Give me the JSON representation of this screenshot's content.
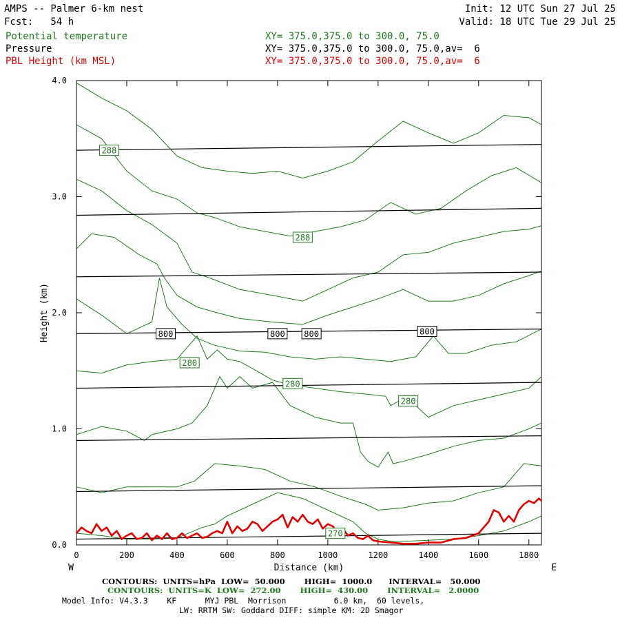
{
  "header": {
    "title": "AMPS -- Palmer 6-km nest",
    "fcst": "Fcst:   54 h",
    "init": "Init: 12 UTC Sun 27 Jul 25",
    "valid": "Valid: 18 UTC Tue 29 Jul 25"
  },
  "legend": [
    {
      "name": "Potential temperature",
      "xy": "XY= 375.0,375.0 to 300.0, 75.0",
      "color": "#1f7a1f"
    },
    {
      "name": "Pressure",
      "xy": "XY= 375.0,375.0 to 300.0, 75.0,av=  6",
      "color": "#000000"
    },
    {
      "name": "PBL Height (km MSL)",
      "xy": "XY= 375.0,375.0 to 300.0, 75.0,av=  6",
      "color": "#e00000"
    }
  ],
  "footer": {
    "pressure_contours": "CONTOURS:  UNITS=hPa  LOW=  50.000       HIGH=  1000.0      INTERVAL=   50.000",
    "theta_contours": "CONTOURS:  UNITS=K  LOW=  272.00       HIGH=  430.00       INTERVAL=   2.0000",
    "model_info": "Model Info: V4.3.3    KF      MYJ PBL  Morrison          6.0 km,  60 levels,",
    "physics": "LW: RRTM SW: Goddard DIFF: simple KM: 2D Smagor"
  },
  "chart_data": {
    "type": "line",
    "xlabel": "Distance (km)",
    "ylabel": "Height (km)",
    "xlim": [
      0,
      1850
    ],
    "ylim": [
      0,
      4.0
    ],
    "x_ticks": [
      "0",
      "200",
      "400",
      "600",
      "800",
      "1000",
      "1200",
      "1400",
      "1600",
      "1800"
    ],
    "y_ticks": [
      "0.0",
      "1.0",
      "2.0",
      "3.0",
      "4.0"
    ],
    "x_tick_values": [
      0,
      200,
      400,
      600,
      800,
      1000,
      1200,
      1400,
      1600,
      1800
    ],
    "y_tick_values": [
      0,
      1,
      2,
      3,
      4
    ],
    "left_end_label": "W",
    "right_end_label": "E",
    "pressure_lines": [
      {
        "x": [
          0,
          1850
        ],
        "y": [
          0.05,
          0.1
        ]
      },
      {
        "x": [
          0,
          1850
        ],
        "y": [
          0.46,
          0.51
        ]
      },
      {
        "x": [
          0,
          1850
        ],
        "y": [
          0.9,
          0.94
        ]
      },
      {
        "x": [
          0,
          1850
        ],
        "y": [
          1.35,
          1.4
        ]
      },
      {
        "x": [
          0,
          1850
        ],
        "y": [
          1.82,
          1.86
        ]
      },
      {
        "x": [
          0,
          1850
        ],
        "y": [
          2.31,
          2.35
        ]
      },
      {
        "x": [
          0,
          1850
        ],
        "y": [
          2.84,
          2.9
        ]
      },
      {
        "x": [
          0,
          1850
        ],
        "y": [
          3.4,
          3.45
        ]
      }
    ],
    "theta_lines": [
      {
        "x": [
          0,
          100,
          200,
          300,
          400,
          500,
          600,
          700,
          800,
          900,
          1000,
          1100,
          1200,
          1300,
          1400,
          1500,
          1600,
          1700,
          1800,
          1850
        ],
        "y": [
          3.98,
          3.85,
          3.74,
          3.58,
          3.35,
          3.25,
          3.22,
          3.2,
          3.22,
          3.16,
          3.22,
          3.3,
          3.48,
          3.65,
          3.55,
          3.46,
          3.55,
          3.7,
          3.68,
          3.62
        ]
      },
      {
        "x": [
          0,
          100,
          200,
          300,
          400,
          480,
          550,
          650,
          750,
          850,
          950,
          1050,
          1150,
          1250,
          1350,
          1450,
          1550,
          1650,
          1750,
          1850
        ],
        "y": [
          3.62,
          3.5,
          3.22,
          3.05,
          2.98,
          2.86,
          2.82,
          2.74,
          2.7,
          2.66,
          2.7,
          2.74,
          2.8,
          2.95,
          2.85,
          2.9,
          3.05,
          3.18,
          3.25,
          3.12
        ]
      },
      {
        "x": [
          0,
          100,
          200,
          300,
          400,
          460,
          530,
          650,
          780,
          900,
          1000,
          1100,
          1200,
          1300,
          1400,
          1500,
          1600,
          1700,
          1800,
          1850
        ],
        "y": [
          3.15,
          3.05,
          2.88,
          2.76,
          2.6,
          2.35,
          2.3,
          2.2,
          2.15,
          2.1,
          2.2,
          2.3,
          2.35,
          2.5,
          2.52,
          2.6,
          2.65,
          2.7,
          2.72,
          2.75
        ]
      },
      {
        "x": [
          0,
          60,
          150,
          250,
          320,
          350,
          400,
          480,
          560,
          650,
          780,
          900,
          1000,
          1100,
          1200,
          1300,
          1400,
          1500,
          1600,
          1700,
          1800,
          1850
        ],
        "y": [
          2.55,
          2.68,
          2.65,
          2.5,
          2.42,
          2.3,
          2.15,
          2.05,
          2.0,
          1.95,
          1.92,
          1.9,
          1.98,
          2.05,
          2.12,
          2.2,
          2.1,
          2.1,
          2.15,
          2.25,
          2.32,
          2.36
        ]
      },
      {
        "x": [
          0,
          100,
          200,
          300,
          330,
          360,
          420,
          480,
          550,
          650,
          750,
          850,
          950,
          1050,
          1150,
          1250,
          1350,
          1420,
          1480,
          1550,
          1650,
          1750,
          1850
        ],
        "y": [
          2.12,
          1.98,
          1.82,
          1.92,
          2.3,
          2.05,
          1.9,
          1.78,
          1.72,
          1.67,
          1.66,
          1.62,
          1.6,
          1.62,
          1.6,
          1.58,
          1.62,
          1.8,
          1.65,
          1.65,
          1.72,
          1.75,
          1.86
        ]
      },
      {
        "x": [
          0,
          100,
          200,
          300,
          400,
          480,
          520,
          560,
          600,
          650,
          700,
          780,
          850,
          950,
          1050,
          1150,
          1230,
          1250,
          1300,
          1350,
          1400,
          1500,
          1600,
          1700,
          1800,
          1850
        ],
        "y": [
          1.5,
          1.48,
          1.55,
          1.58,
          1.6,
          1.8,
          1.6,
          1.68,
          1.6,
          1.58,
          1.52,
          1.42,
          1.38,
          1.35,
          1.32,
          1.3,
          1.28,
          1.2,
          1.26,
          1.2,
          1.1,
          1.2,
          1.25,
          1.3,
          1.35,
          1.45
        ]
      },
      {
        "x": [
          0,
          100,
          200,
          270,
          300,
          400,
          460,
          520,
          570,
          600,
          650,
          700,
          780,
          850,
          950,
          1050,
          1100,
          1130,
          1160,
          1200,
          1240,
          1260,
          1300,
          1400,
          1500,
          1600,
          1700,
          1800,
          1850
        ],
        "y": [
          0.95,
          1.02,
          0.98,
          0.9,
          0.95,
          1.0,
          1.05,
          1.2,
          1.45,
          1.35,
          1.45,
          1.35,
          1.4,
          1.2,
          1.1,
          1.05,
          1.05,
          0.8,
          0.72,
          0.67,
          0.8,
          0.7,
          0.72,
          0.78,
          0.85,
          0.9,
          0.92,
          1.0,
          1.05
        ]
      },
      {
        "x": [
          0,
          100,
          200,
          300,
          400,
          470,
          550,
          650,
          750,
          850,
          950,
          1050,
          1150,
          1200,
          1300,
          1400,
          1500,
          1600,
          1700,
          1780,
          1850
        ],
        "y": [
          0.5,
          0.45,
          0.5,
          0.5,
          0.5,
          0.55,
          0.7,
          0.68,
          0.65,
          0.55,
          0.5,
          0.42,
          0.35,
          0.3,
          0.32,
          0.36,
          0.38,
          0.45,
          0.5,
          0.7,
          0.68
        ]
      },
      {
        "x": [
          0,
          100,
          200,
          300,
          400,
          500,
          550,
          600,
          700,
          800,
          900,
          1000,
          1100,
          1150,
          1200,
          1250,
          1300,
          1400,
          1500,
          1600,
          1700,
          1800,
          1850
        ],
        "y": [
          0.1,
          0.08,
          0.05,
          0.05,
          0.06,
          0.15,
          0.18,
          0.25,
          0.35,
          0.45,
          0.4,
          0.3,
          0.2,
          0.1,
          0.05,
          0.03,
          0.03,
          0.04,
          0.05,
          0.08,
          0.12,
          0.2,
          0.25
        ]
      }
    ],
    "pbl_height": {
      "x": [
        0,
        20,
        40,
        60,
        80,
        100,
        120,
        140,
        160,
        180,
        200,
        220,
        240,
        260,
        280,
        300,
        320,
        340,
        360,
        380,
        400,
        420,
        440,
        460,
        480,
        500,
        520,
        540,
        560,
        580,
        600,
        620,
        640,
        660,
        680,
        700,
        720,
        740,
        760,
        780,
        800,
        820,
        840,
        860,
        880,
        900,
        920,
        940,
        960,
        980,
        1000,
        1020,
        1040,
        1060,
        1080,
        1100,
        1120,
        1140,
        1160,
        1180,
        1200,
        1250,
        1300,
        1350,
        1400,
        1450,
        1500,
        1550,
        1600,
        1620,
        1640,
        1660,
        1680,
        1700,
        1720,
        1740,
        1760,
        1780,
        1800,
        1820,
        1840,
        1850
      ],
      "y": [
        0.1,
        0.15,
        0.12,
        0.1,
        0.18,
        0.12,
        0.15,
        0.08,
        0.12,
        0.05,
        0.08,
        0.1,
        0.05,
        0.06,
        0.1,
        0.04,
        0.08,
        0.05,
        0.1,
        0.05,
        0.06,
        0.1,
        0.06,
        0.08,
        0.1,
        0.06,
        0.07,
        0.1,
        0.12,
        0.1,
        0.2,
        0.1,
        0.16,
        0.12,
        0.14,
        0.2,
        0.18,
        0.12,
        0.16,
        0.2,
        0.22,
        0.26,
        0.15,
        0.24,
        0.2,
        0.26,
        0.2,
        0.18,
        0.22,
        0.14,
        0.18,
        0.16,
        0.1,
        0.14,
        0.08,
        0.1,
        0.06,
        0.05,
        0.08,
        0.04,
        0.03,
        0.02,
        0.01,
        0.01,
        0.02,
        0.02,
        0.05,
        0.06,
        0.1,
        0.15,
        0.2,
        0.3,
        0.28,
        0.2,
        0.25,
        0.2,
        0.3,
        0.35,
        0.38,
        0.36,
        0.4,
        0.38
      ]
    },
    "labels": [
      {
        "text": "288",
        "x": 130,
        "y": 3.4,
        "color": "#1f7a1f"
      },
      {
        "text": "288",
        "x": 900,
        "y": 2.65,
        "color": "#1f7a1f"
      },
      {
        "text": "800",
        "x": 355,
        "y": 1.82,
        "color": "#000000"
      },
      {
        "text": "800",
        "x": 800,
        "y": 1.82,
        "color": "#000000"
      },
      {
        "text": "800",
        "x": 935,
        "y": 1.82,
        "color": "#000000"
      },
      {
        "text": "800",
        "x": 1395,
        "y": 1.84,
        "color": "#000000"
      },
      {
        "text": "280",
        "x": 450,
        "y": 1.57,
        "color": "#1f7a1f"
      },
      {
        "text": "280",
        "x": 860,
        "y": 1.39,
        "color": "#1f7a1f"
      },
      {
        "text": "280",
        "x": 1320,
        "y": 1.24,
        "color": "#1f7a1f"
      },
      {
        "text": "270",
        "x": 1030,
        "y": 0.1,
        "color": "#1f7a1f"
      }
    ]
  }
}
